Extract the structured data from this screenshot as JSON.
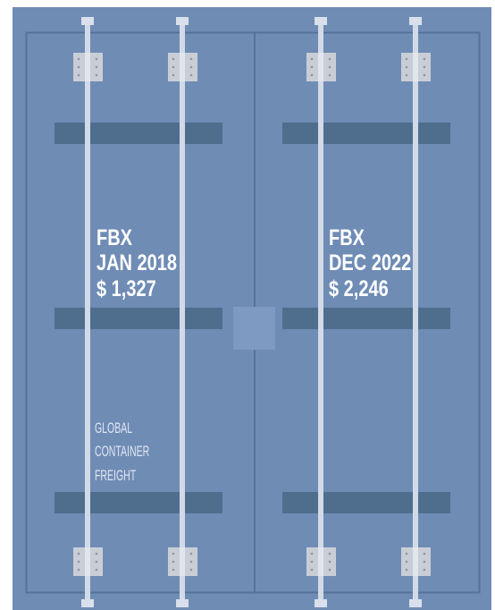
{
  "panels": [
    {
      "label": "FBX",
      "date": "JAN 2018",
      "price": "$ 1,327"
    },
    {
      "label": "FBX",
      "date": "DEC 2022",
      "price": "$ 2,246"
    }
  ],
  "caption": [
    "GLOBAL",
    "CONTAINER",
    "FREIGHT"
  ]
}
